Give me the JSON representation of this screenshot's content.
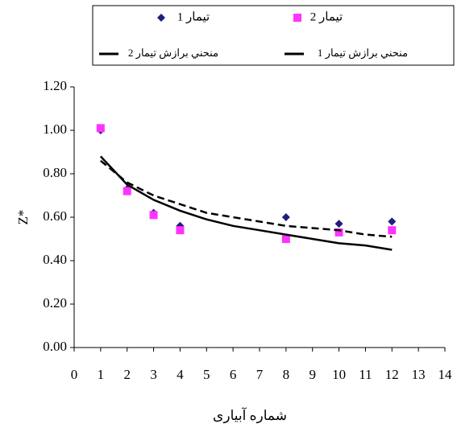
{
  "chart_data": {
    "type": "scatter",
    "xlabel": "شماره آبیاری",
    "ylabel": "Z*",
    "xlim": [
      0,
      14
    ],
    "xticks": [
      0,
      1,
      2,
      3,
      4,
      5,
      6,
      7,
      8,
      9,
      10,
      11,
      12,
      13,
      14
    ],
    "ylim": [
      0,
      1.2
    ],
    "yticks": [
      {
        "value": 0,
        "label": "0.00"
      },
      {
        "value": 0.2,
        "label": "0.20"
      },
      {
        "value": 0.4,
        "label": "0.40"
      },
      {
        "value": 0.6,
        "label": "0.60"
      },
      {
        "value": 0.8,
        "label": "0.80"
      },
      {
        "value": 1,
        "label": "1.00"
      },
      {
        "value": 1.2,
        "label": "1.20"
      }
    ],
    "grid": false,
    "series": [
      {
        "name": "تیمار 1",
        "color": "#1f1f7a",
        "marker": "diamond",
        "x": [
          1,
          2,
          3,
          4,
          8,
          10,
          12
        ],
        "values": [
          1.0,
          0.73,
          0.62,
          0.56,
          0.6,
          0.57,
          0.58
        ]
      },
      {
        "name": "تیمار 2",
        "color": "#ff33ff",
        "marker": "square",
        "x": [
          1,
          2,
          3,
          4,
          8,
          10,
          12
        ],
        "values": [
          1.01,
          0.72,
          0.61,
          0.54,
          0.5,
          0.53,
          0.54
        ]
      },
      {
        "name": "منحني برازش تيمار 1",
        "color": "#000000",
        "line": "dashed",
        "x": [
          1,
          2,
          3,
          4,
          5,
          6,
          7,
          8,
          9,
          10,
          11,
          12
        ],
        "values": [
          0.86,
          0.76,
          0.7,
          0.66,
          0.62,
          0.6,
          0.58,
          0.56,
          0.55,
          0.54,
          0.52,
          0.51
        ]
      },
      {
        "name": "منحني برازش تيمار 2",
        "color": "#000000",
        "line": "solid",
        "x": [
          1,
          2,
          3,
          4,
          5,
          6,
          7,
          8,
          9,
          10,
          11,
          12
        ],
        "values": [
          0.88,
          0.75,
          0.68,
          0.63,
          0.59,
          0.56,
          0.54,
          0.52,
          0.5,
          0.48,
          0.47,
          0.45
        ]
      }
    ]
  }
}
